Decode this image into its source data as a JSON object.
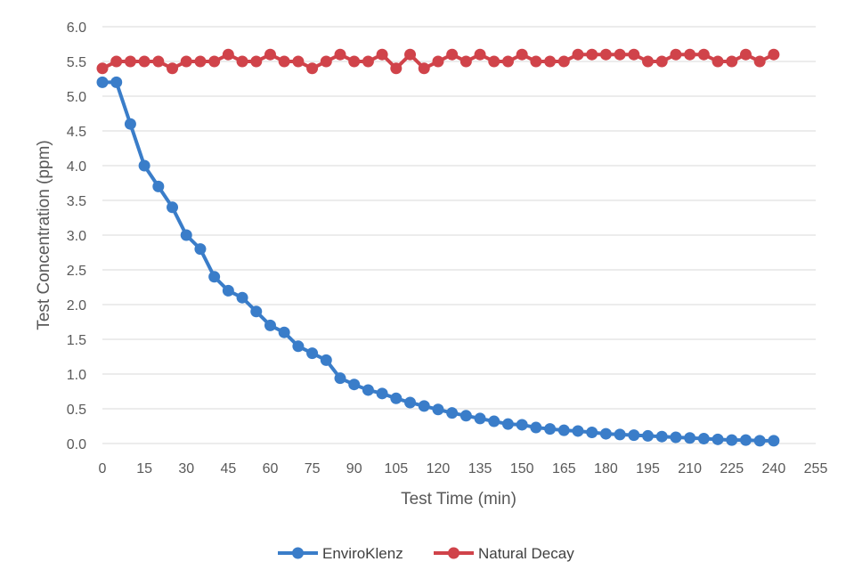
{
  "chart_data": {
    "type": "line",
    "title": "",
    "xlabel": "Test Time (min)",
    "ylabel": "Test Concentration (ppm)",
    "xlim": [
      0,
      255
    ],
    "ylim": [
      0,
      6
    ],
    "x_ticks": [
      "0",
      "15",
      "30",
      "45",
      "60",
      "75",
      "90",
      "105",
      "120",
      "135",
      "150",
      "165",
      "180",
      "195",
      "210",
      "225",
      "240",
      "255"
    ],
    "y_ticks": [
      "0.0",
      "0.5",
      "1.0",
      "1.5",
      "2.0",
      "2.5",
      "3.0",
      "3.5",
      "4.0",
      "4.5",
      "5.0",
      "5.5",
      "6.0"
    ],
    "grid": "horizontal",
    "legend_position": "bottom",
    "x": [
      0,
      5,
      10,
      15,
      20,
      25,
      30,
      35,
      40,
      45,
      50,
      55,
      60,
      65,
      70,
      75,
      80,
      85,
      90,
      95,
      100,
      105,
      110,
      115,
      120,
      125,
      130,
      135,
      140,
      145,
      150,
      155,
      160,
      165,
      170,
      175,
      180,
      185,
      190,
      195,
      200,
      205,
      210,
      215,
      220,
      225,
      230,
      235,
      240
    ],
    "series": [
      {
        "name": "EnviroKlenz",
        "color": "#3a7dc9",
        "values": [
          5.2,
          5.2,
          4.6,
          4.0,
          3.7,
          3.4,
          3.0,
          2.8,
          2.4,
          2.2,
          2.1,
          1.9,
          1.7,
          1.6,
          1.4,
          1.3,
          1.2,
          0.94,
          0.85,
          0.77,
          0.72,
          0.65,
          0.59,
          0.54,
          0.49,
          0.44,
          0.4,
          0.36,
          0.32,
          0.28,
          0.27,
          0.23,
          0.21,
          0.19,
          0.18,
          0.16,
          0.14,
          0.13,
          0.12,
          0.11,
          0.1,
          0.09,
          0.08,
          0.07,
          0.06,
          0.05,
          0.05,
          0.04,
          0.04
        ]
      },
      {
        "name": "Natural Decay",
        "color": "#d0434a",
        "values": [
          5.4,
          5.5,
          5.5,
          5.5,
          5.5,
          5.4,
          5.5,
          5.5,
          5.5,
          5.6,
          5.5,
          5.5,
          5.6,
          5.5,
          5.5,
          5.4,
          5.5,
          5.6,
          5.5,
          5.5,
          5.6,
          5.4,
          5.6,
          5.4,
          5.5,
          5.6,
          5.5,
          5.6,
          5.5,
          5.5,
          5.6,
          5.5,
          5.5,
          5.5,
          5.6,
          5.6,
          5.6,
          5.6,
          5.6,
          5.5,
          5.5,
          5.6,
          5.6,
          5.6,
          5.5,
          5.5,
          5.6,
          5.5,
          5.6
        ]
      }
    ]
  }
}
